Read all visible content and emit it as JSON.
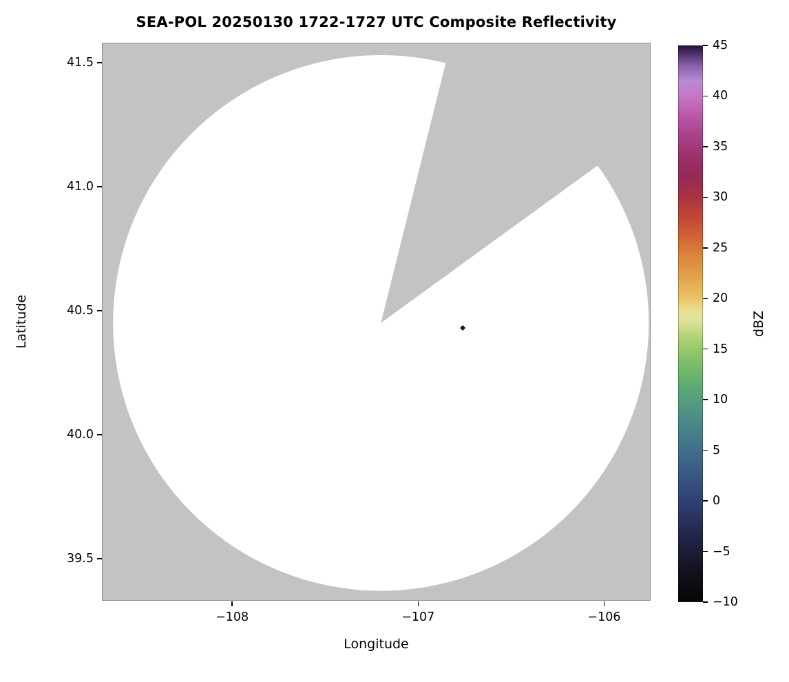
{
  "chart_data": {
    "type": "heatmap",
    "title": "SEA-POL 20250130 1722-1727 UTC Composite Reflectivity",
    "xlabel": "Longitude",
    "ylabel": "Latitude",
    "xlim": [
      -108.7,
      -105.75
    ],
    "ylim": [
      39.33,
      41.58
    ],
    "grid": false,
    "no_data_color": "#c3c3c3",
    "xticks": [
      {
        "value": -108,
        "label": "−108"
      },
      {
        "value": -107,
        "label": "−107"
      },
      {
        "value": -106,
        "label": "−106"
      }
    ],
    "yticks": [
      {
        "value": 39.5,
        "label": "39.5"
      },
      {
        "value": 40.0,
        "label": "40.0"
      },
      {
        "value": 40.5,
        "label": "40.5"
      },
      {
        "value": 41.0,
        "label": "41.0"
      },
      {
        "value": 41.5,
        "label": "41.5"
      }
    ],
    "radar_coverage": {
      "description": "White disk = radar scan coverage with no echo; gray = no data / masked",
      "center_lon": -107.2,
      "center_lat": 40.45,
      "radius_lon_deg": 1.44,
      "radius_lat_deg": 1.08,
      "fill": "#ffffff",
      "blocked_sector_azimuth_deg": [
        14,
        54
      ]
    },
    "echo_points": [
      {
        "lon": -106.76,
        "lat": 40.43,
        "color": "#140d17"
      }
    ],
    "colorbar": {
      "label": "dBZ",
      "min": -10,
      "max": 45,
      "ticks": [
        {
          "value": 45,
          "label": "45"
        },
        {
          "value": 40,
          "label": "40"
        },
        {
          "value": 35,
          "label": "35"
        },
        {
          "value": 30,
          "label": "30"
        },
        {
          "value": 25,
          "label": "25"
        },
        {
          "value": 20,
          "label": "20"
        },
        {
          "value": 15,
          "label": "15"
        },
        {
          "value": 10,
          "label": "10"
        },
        {
          "value": 5,
          "label": "5"
        },
        {
          "value": 0,
          "label": "0"
        },
        {
          "value": -5,
          "label": "−5"
        },
        {
          "value": -10,
          "label": "−10"
        }
      ],
      "stops": [
        {
          "value": -10,
          "color": "#060607"
        },
        {
          "value": -8,
          "color": "#0e0e16"
        },
        {
          "value": -6,
          "color": "#17172c"
        },
        {
          "value": -4,
          "color": "#1f2244"
        },
        {
          "value": -2,
          "color": "#28315d"
        },
        {
          "value": 0,
          "color": "#304174"
        },
        {
          "value": 2,
          "color": "#375381"
        },
        {
          "value": 4,
          "color": "#3e6688"
        },
        {
          "value": 6,
          "color": "#45798b"
        },
        {
          "value": 8,
          "color": "#4c8c88"
        },
        {
          "value": 10,
          "color": "#549e7d"
        },
        {
          "value": 12,
          "color": "#65b06e"
        },
        {
          "value": 14,
          "color": "#84c067"
        },
        {
          "value": 16,
          "color": "#abd073"
        },
        {
          "value": 17,
          "color": "#c9dc88"
        },
        {
          "value": 18,
          "color": "#e3e59e"
        },
        {
          "value": 19,
          "color": "#eadc8e"
        },
        {
          "value": 20,
          "color": "#e8c368"
        },
        {
          "value": 22,
          "color": "#e4a54d"
        },
        {
          "value": 24,
          "color": "#dd873e"
        },
        {
          "value": 26,
          "color": "#d36636"
        },
        {
          "value": 28,
          "color": "#c24736"
        },
        {
          "value": 30,
          "color": "#ab3442"
        },
        {
          "value": 32,
          "color": "#962a55"
        },
        {
          "value": 34,
          "color": "#9a3169"
        },
        {
          "value": 36,
          "color": "#a94089"
        },
        {
          "value": 38,
          "color": "#bb55a7"
        },
        {
          "value": 40,
          "color": "#c676c4"
        },
        {
          "value": 41.5,
          "color": "#b98ad5"
        },
        {
          "value": 43,
          "color": "#8a64ad"
        },
        {
          "value": 44,
          "color": "#5a3a78"
        },
        {
          "value": 45,
          "color": "#281240"
        }
      ]
    }
  }
}
